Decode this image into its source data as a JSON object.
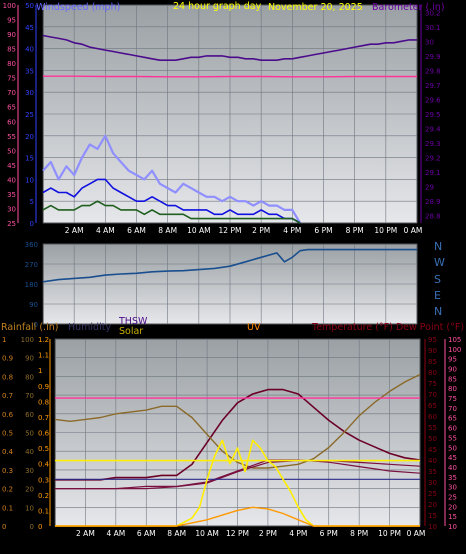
{
  "colors": {
    "background": "#000000",
    "plot_bg_top": "#9aa0a4",
    "plot_bg_bottom": "#e8e8ea",
    "grid": "#6f7680",
    "frame": "#2a2a2a",
    "wind_speed": "#8f8fff",
    "wind_avg": "#1010e0",
    "wind_gust_low": "#1f5f1f",
    "barometer": "#4b0c8c",
    "dew_point": "#ff3399",
    "direction": "#1a4f8f",
    "temperature": "#6b0026",
    "humidity": "#8b6a2a",
    "thsw": "#7a1040",
    "solar": "#ffee00",
    "uv": "#ff9900",
    "rain": "#2a2a8a",
    "pink_left_axis": "#ff4fa0",
    "purple_axis": "#6a00a0",
    "blue_axis": "#3040ff",
    "orange_axis": "#d08020",
    "label_wind": "#6666ff",
    "label_title": "#ffff00",
    "label_barometer": "#6a00a0",
    "label_temp": "#8b0015",
    "label_rain": "#c08020",
    "label_humidity": "#333366",
    "label_thsw": "#4b0c8c",
    "label_solar": "#c8b000",
    "label_uv": "#ff8800",
    "label_wd": "#3a6fb5"
  },
  "header": {
    "windspeed": "Windspeed (mph)",
    "graph_title": "24 hour graph day",
    "timestamp": "November 20, 2025",
    "barometer": "Barometer (.in)"
  },
  "direction_labels": [
    "N",
    "W",
    "S",
    "E",
    "N"
  ],
  "bottom_header": {
    "rain": "Rainfall (.in)",
    "humidity": "Humidity",
    "thsw": "THSW",
    "solar": "Solar",
    "uv": "UV",
    "temp": "Temperature (°F) Dew Point (°F)"
  },
  "x_ticks": [
    "2 AM",
    "4 AM",
    "6 AM",
    "8 AM",
    "10 AM",
    "12 PM",
    "2 PM",
    "4 PM",
    "6 PM",
    "8 PM",
    "10 PM",
    "0 AM"
  ],
  "chart_data": [
    {
      "type": "line",
      "xlabel": "",
      "xlim": [
        0,
        24
      ],
      "x_ticks": [
        "2 AM",
        "4 AM",
        "6 AM",
        "8 AM",
        "10 AM",
        "12 PM",
        "2 PM",
        "4 PM",
        "6 PM",
        "8 PM",
        "10 PM",
        "0 AM"
      ],
      "left_axis": {
        "label": "Windspeed (mph)",
        "ticks": [
          100,
          95,
          90,
          85,
          80,
          75,
          70,
          65,
          60,
          55,
          50,
          45,
          40,
          35,
          30,
          25
        ],
        "ylim": [
          25,
          100
        ]
      },
      "wind_axis": {
        "ticks": [
          50,
          45,
          40,
          35,
          30,
          25,
          20,
          15,
          10,
          5,
          0
        ],
        "ylim": [
          0,
          50
        ]
      },
      "right_axis": {
        "label": "Barometer (.in)",
        "ticks": [
          30.2,
          30.1,
          30,
          29.9,
          29.8,
          29.7,
          29.6,
          29.5,
          29.4,
          29.3,
          29.2,
          29.1,
          29,
          28.9,
          28.8
        ],
        "ylim": [
          28.75,
          30.25
        ]
      },
      "series": [
        {
          "axis": "right",
          "x": [
            0,
            0.5,
            1,
            1.5,
            2,
            2.5,
            3,
            3.5,
            4,
            4.5,
            5,
            5.5,
            6,
            6.5,
            7,
            7.5,
            8,
            8.5,
            9,
            9.5,
            10,
            10.5,
            11,
            11.5,
            12,
            12.5,
            13,
            13.5,
            14,
            14.5,
            15,
            15.5,
            16,
            16.5,
            17,
            17.5,
            18,
            18.5,
            19,
            19.5,
            20,
            20.5,
            21,
            21.5,
            22,
            22.5,
            23,
            23.5,
            24
          ],
          "values": [
            30.04,
            30.03,
            30.02,
            30.01,
            29.99,
            29.98,
            29.96,
            29.95,
            29.94,
            29.93,
            29.92,
            29.91,
            29.9,
            29.89,
            29.88,
            29.87,
            29.87,
            29.87,
            29.88,
            29.89,
            29.89,
            29.9,
            29.9,
            29.9,
            29.89,
            29.89,
            29.88,
            29.88,
            29.87,
            29.87,
            29.87,
            29.88,
            29.88,
            29.89,
            29.9,
            29.91,
            29.92,
            29.93,
            29.94,
            29.95,
            29.96,
            29.97,
            29.98,
            29.98,
            29.99,
            29.99,
            30,
            30.01,
            30.01
          ]
        },
        {
          "axis": "left",
          "x": [
            0,
            2,
            4,
            6,
            8,
            10,
            12,
            14,
            16,
            18,
            20,
            22,
            24
          ],
          "values": [
            75.5,
            75.5,
            75.4,
            75.4,
            75.3,
            75.3,
            75.4,
            75.4,
            75.3,
            75.3,
            75.4,
            75.4,
            75.4
          ]
        },
        {
          "axis": "wind",
          "x": [
            0,
            0.5,
            1,
            1.5,
            2,
            2.5,
            3,
            3.5,
            4,
            4.5,
            5,
            5.5,
            6,
            6.5,
            7,
            7.5,
            8,
            8.5,
            9,
            9.5,
            10,
            10.5,
            11,
            11.5,
            12,
            12.5,
            13,
            13.5,
            14,
            14.5,
            15,
            15.5,
            16,
            16.5
          ],
          "values": [
            12,
            14,
            10,
            13,
            11,
            15,
            18,
            17,
            20,
            16,
            14,
            12,
            11,
            10,
            12,
            9,
            8,
            7,
            9,
            8,
            7,
            6,
            6,
            5,
            6,
            5,
            5,
            4,
            5,
            4,
            4,
            3,
            3,
            0
          ]
        },
        {
          "axis": "wind",
          "x": [
            0,
            0.5,
            1,
            1.5,
            2,
            2.5,
            3,
            3.5,
            4,
            4.5,
            5,
            5.5,
            6,
            6.5,
            7,
            7.5,
            8,
            8.5,
            9,
            9.5,
            10,
            10.5,
            11,
            11.5,
            12,
            12.5,
            13,
            13.5,
            14,
            14.5,
            15,
            15.5,
            16,
            16.5
          ],
          "values": [
            7,
            8,
            7,
            7,
            6,
            8,
            9,
            10,
            10,
            8,
            7,
            6,
            5,
            5,
            6,
            5,
            4,
            4,
            3,
            3,
            3,
            3,
            2,
            2,
            3,
            2,
            2,
            2,
            3,
            2,
            2,
            1,
            1,
            0
          ]
        },
        {
          "axis": "wind",
          "x": [
            0,
            0.5,
            1,
            1.5,
            2,
            2.5,
            3,
            3.5,
            4,
            4.5,
            5,
            5.5,
            6,
            6.5,
            7,
            7.5,
            8,
            8.5,
            9,
            9.5,
            10,
            10.5,
            11,
            11.5,
            12,
            12.5,
            13,
            13.5,
            14,
            14.5,
            15,
            15.5,
            16,
            16.5
          ],
          "values": [
            3,
            4,
            3,
            3,
            3,
            4,
            4,
            5,
            4,
            4,
            3,
            3,
            3,
            2,
            3,
            2,
            2,
            2,
            2,
            1,
            1,
            1,
            1,
            1,
            1,
            1,
            1,
            1,
            1,
            1,
            1,
            1,
            1,
            0
          ]
        }
      ]
    },
    {
      "type": "line",
      "xlim": [
        0,
        24
      ],
      "left_axis": {
        "ticks": [
          360,
          270,
          180,
          90,
          0
        ],
        "ylim": [
          0,
          360
        ]
      },
      "right_axis": {
        "ticks": [
          "N",
          "W",
          "S",
          "E",
          "N"
        ]
      },
      "series": [
        {
          "x": [
            0,
            1,
            2,
            3,
            4,
            5,
            6,
            7,
            8,
            9,
            10,
            11,
            12,
            13,
            14,
            15,
            15.5,
            16,
            16.5,
            17,
            18,
            20,
            22,
            24
          ],
          "values": [
            190,
            200,
            205,
            210,
            220,
            225,
            228,
            235,
            238,
            240,
            245,
            250,
            260,
            280,
            300,
            320,
            280,
            300,
            330,
            335,
            335,
            335,
            335,
            335
          ]
        }
      ]
    },
    {
      "type": "line",
      "xlim": [
        0,
        24
      ],
      "x_ticks": [
        "2 AM",
        "4 AM",
        "6 AM",
        "8 AM",
        "10 AM",
        "12 PM",
        "2 PM",
        "4 PM",
        "6 PM",
        "8 PM",
        "10 PM",
        "0 AM"
      ],
      "rain_axis": {
        "label": "Rainfall (.in)",
        "ticks": [
          1,
          0.9,
          0.8,
          0.7,
          0.6,
          0.5,
          0.4,
          0.3,
          0.2,
          0.1,
          0
        ],
        "ylim": [
          0,
          1
        ]
      },
      "humidity_axis": {
        "label": "Humidity",
        "ticks": [
          100,
          90,
          80,
          70,
          60,
          50,
          40,
          30,
          20,
          10,
          0
        ],
        "ylim": [
          0,
          100
        ]
      },
      "uv_axis": {
        "ticks": [
          1.2,
          1.1,
          1,
          0.9,
          0.8,
          0.7,
          0.6,
          0.5,
          0.4,
          0.3,
          0.2,
          0.1,
          0
        ],
        "ylim": [
          0,
          1.2
        ]
      },
      "temp_axis": {
        "label": "Temperature (°F) Dew Point (°F)",
        "ticks": [
          95,
          90,
          85,
          80,
          75,
          70,
          65,
          60,
          55,
          50,
          45,
          40,
          35,
          30,
          25,
          20,
          15,
          10
        ],
        "ylim": [
          10,
          95
        ]
      },
      "dew_axis": {
        "ticks": [
          105,
          100,
          95,
          90,
          85,
          80,
          75,
          70,
          65,
          60,
          55,
          50,
          45,
          40,
          35,
          30,
          25,
          20,
          15,
          10
        ],
        "ylim": [
          10,
          105
        ]
      },
      "series": [
        {
          "axis": "temp",
          "x": [
            0,
            1,
            2,
            3,
            4,
            5,
            6,
            7,
            8,
            9,
            10,
            11,
            12,
            13,
            14,
            15,
            16,
            17,
            18,
            19,
            20,
            21,
            22,
            23,
            24
          ],
          "values": [
            31,
            31,
            31,
            31,
            32,
            32,
            32,
            33,
            33,
            38,
            48,
            58,
            66,
            70,
            72,
            72,
            70,
            64,
            58,
            53,
            49,
            46,
            43,
            41,
            40
          ]
        },
        {
          "axis": "humidity",
          "x": [
            0,
            1,
            2,
            3,
            4,
            5,
            6,
            7,
            8,
            9,
            10,
            11,
            12,
            13,
            14,
            15,
            16,
            17,
            18,
            19,
            20,
            21,
            22,
            23,
            24
          ],
          "values": [
            57,
            56,
            57,
            58,
            60,
            61,
            62,
            64,
            64,
            58,
            49,
            40,
            34,
            31,
            31,
            32,
            33,
            36,
            42,
            50,
            59,
            66,
            72,
            77,
            81
          ]
        },
        {
          "axis": "temp",
          "x": [
            0,
            2,
            4,
            6,
            8,
            10,
            12,
            14,
            16,
            18,
            20,
            22,
            24
          ],
          "values": [
            27,
            27,
            27,
            28,
            28,
            30,
            35,
            40,
            40,
            39,
            37,
            35,
            34
          ]
        },
        {
          "axis": "humidity",
          "x": [
            0,
            2,
            4,
            6,
            8,
            10,
            12,
            14,
            16,
            18,
            20,
            22,
            24
          ],
          "values": [
            20,
            20,
            20,
            20,
            21,
            23,
            29,
            34,
            35,
            35,
            34,
            33,
            32
          ]
        },
        {
          "axis": "dew",
          "x": [
            0,
            2,
            4,
            6,
            8,
            10,
            12,
            14,
            16,
            18,
            20,
            22,
            24
          ],
          "values": [
            75,
            75,
            75,
            75,
            75,
            75,
            75,
            75,
            75,
            75,
            75,
            75,
            75
          ]
        },
        {
          "axis": "uv",
          "x": [
            0,
            2,
            4,
            6,
            8,
            10,
            12,
            14,
            16,
            18,
            20,
            22,
            24
          ],
          "values": [
            0.42,
            0.42,
            0.42,
            0.42,
            0.42,
            0.42,
            0.42,
            0.42,
            0.42,
            0.42,
            0.42,
            0.42,
            0.42
          ]
        },
        {
          "axis": "rain",
          "x": [
            0,
            24
          ],
          "values": [
            0.25,
            0.25
          ]
        },
        {
          "axis": "uv",
          "x": [
            0,
            6,
            8,
            9,
            9.5,
            10,
            10.5,
            11,
            11.5,
            12,
            12.5,
            13,
            13.5,
            14,
            14.5,
            15,
            15.5,
            16,
            16.5,
            17,
            18,
            24
          ],
          "values": [
            0,
            0,
            0,
            0.05,
            0.12,
            0.3,
            0.45,
            0.55,
            0.4,
            0.5,
            0.35,
            0.55,
            0.5,
            0.42,
            0.38,
            0.3,
            0.22,
            0.12,
            0.04,
            0,
            0,
            0
          ]
        },
        {
          "axis": "uv",
          "x": [
            0,
            8,
            9,
            10,
            11,
            12,
            13,
            14,
            15,
            16,
            17,
            24
          ],
          "values": [
            0,
            0,
            0.02,
            0.04,
            0.07,
            0.1,
            0.12,
            0.11,
            0.08,
            0.04,
            0,
            0
          ]
        }
      ]
    }
  ]
}
